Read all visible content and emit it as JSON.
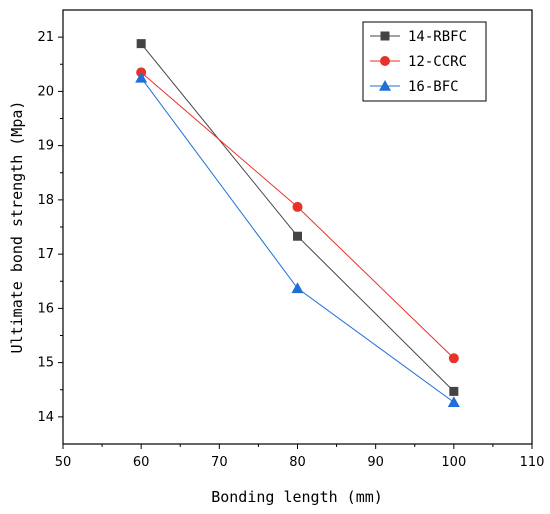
{
  "chart_data": {
    "type": "line",
    "xlabel": "Bonding length (mm)",
    "ylabel": "Ultimate bond strength (Mpa)",
    "xlim": [
      50,
      110
    ],
    "ylim": [
      13.5,
      21.5
    ],
    "x_ticks": [
      "50",
      "60",
      "70",
      "80",
      "90",
      "100",
      "110"
    ],
    "y_ticks": [
      "14",
      "15",
      "16",
      "17",
      "18",
      "19",
      "20",
      "21"
    ],
    "grid": false,
    "legend_position": "top-right",
    "x": [
      60,
      80,
      100
    ],
    "series": [
      {
        "name": "14-RBFC",
        "values": [
          20.88,
          17.33,
          14.47
        ],
        "color": "#444444",
        "marker": "square"
      },
      {
        "name": "12-CCRC",
        "values": [
          20.35,
          17.87,
          15.08
        ],
        "color": "#e8312b",
        "marker": "circle"
      },
      {
        "name": "16-BFC",
        "values": [
          20.25,
          16.37,
          14.27
        ],
        "color": "#1f6fd6",
        "marker": "triangle"
      }
    ]
  }
}
